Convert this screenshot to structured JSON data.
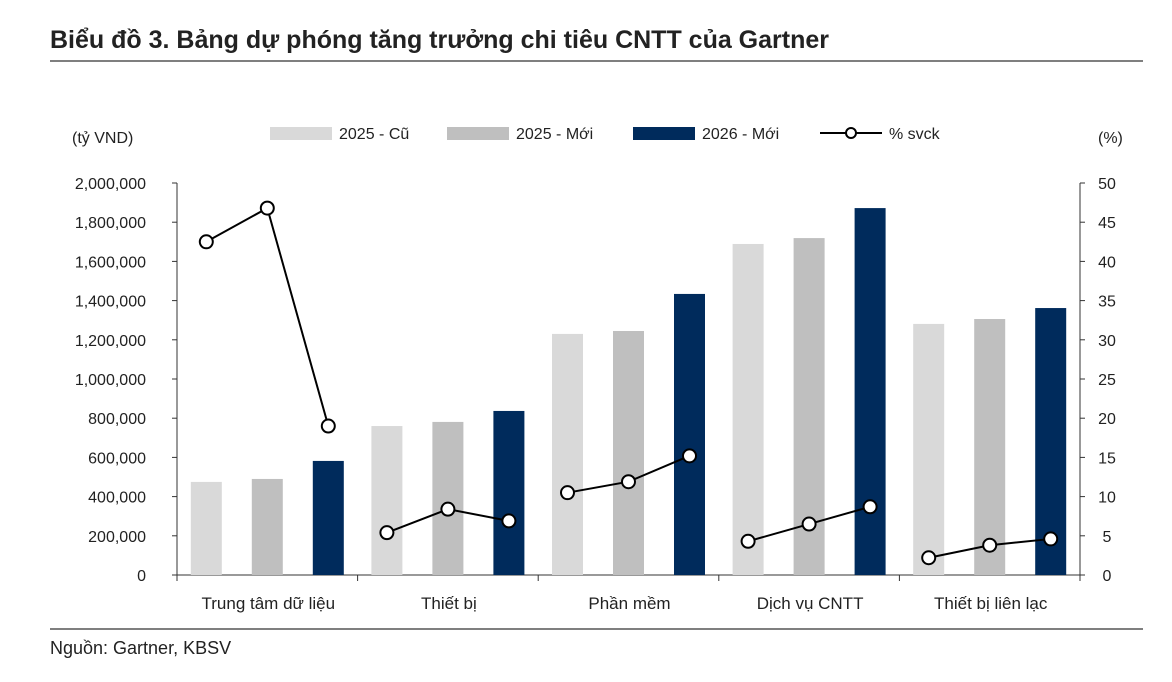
{
  "title": "Biểu đồ 3. Bảng dự phóng tăng trưởng chi tiêu CNTT của Gartner",
  "source": "Nguồn: Gartner, KBSV",
  "chart_data": {
    "type": "bar",
    "left_axis_label": "(tỷ VND)",
    "right_axis_label": "(%)",
    "categories": [
      "Trung tâm dữ liệu",
      "Thiết bị",
      "Phần mềm",
      "Dịch vụ CNTT",
      "Thiết bị liên lạc"
    ],
    "ylim_left": [
      0,
      2000000
    ],
    "ylim_right": [
      0,
      50
    ],
    "left_ticks": [
      "0",
      "200,000",
      "400,000",
      "600,000",
      "800,000",
      "1,000,000",
      "1,200,000",
      "1,400,000",
      "1,600,000",
      "1,800,000",
      "2,000,000"
    ],
    "right_ticks": [
      "0",
      "5",
      "10",
      "15",
      "20",
      "25",
      "30",
      "35",
      "40",
      "45",
      "50"
    ],
    "legend_position": "top",
    "grid": false,
    "series": [
      {
        "name": "2025 - Cũ",
        "type": "bar",
        "axis": "left",
        "color": "#d9d9d9",
        "values": [
          475000,
          760000,
          1230000,
          1689000,
          1281000
        ]
      },
      {
        "name": "2025 - Mới",
        "type": "bar",
        "axis": "left",
        "color": "#bfbfbf",
        "values": [
          490000,
          781000,
          1245000,
          1719000,
          1306000
        ]
      },
      {
        "name": "2026 - Mới",
        "type": "bar",
        "axis": "left",
        "color": "#002b5c",
        "values": [
          582000,
          837000,
          1434000,
          1872000,
          1362000
        ]
      },
      {
        "name": "% svck",
        "type": "line",
        "axis": "right",
        "color": "#000000",
        "values": [
          [
            42.5,
            46.8,
            19.0
          ],
          [
            5.4,
            8.4,
            6.9
          ],
          [
            10.5,
            11.9,
            15.2
          ],
          [
            4.3,
            6.5,
            8.7
          ],
          [
            2.2,
            3.8,
            4.6
          ]
        ]
      }
    ]
  }
}
